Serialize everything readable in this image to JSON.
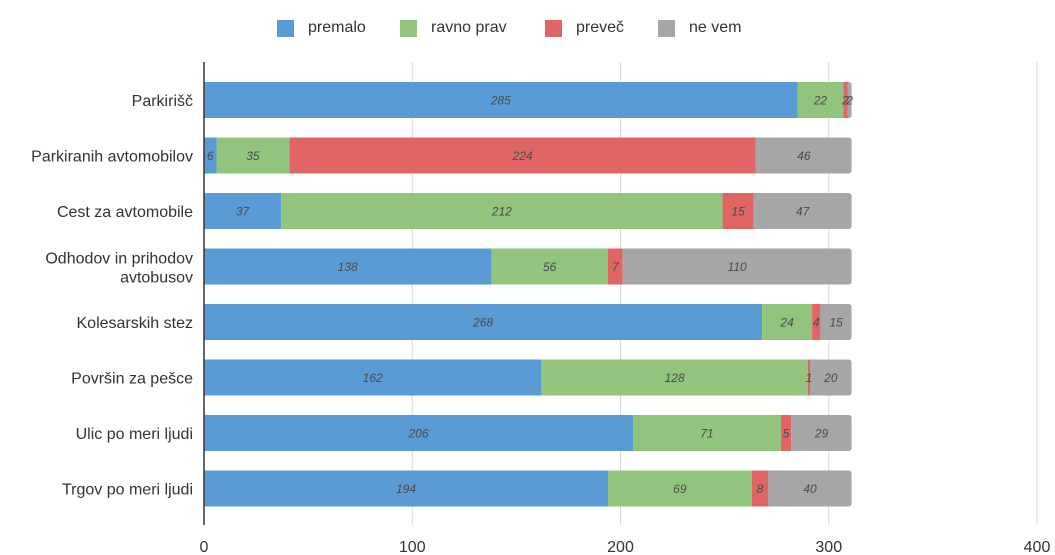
{
  "chart_data": {
    "type": "bar",
    "orientation": "horizontal",
    "stacked": true,
    "categories": [
      "Parkirišč",
      "Parkiranih avtomobilov",
      "Cest za avtomobile",
      "Odhodov in prihodov avtobusov",
      "Kolesarskih stez",
      "Površin za pešce",
      "Ulic po meri ljudi",
      "Trgov po meri ljudi"
    ],
    "series": [
      {
        "name": "premalo",
        "color": "#5b9bd5",
        "values": [
          285,
          6,
          37,
          138,
          268,
          162,
          206,
          194
        ]
      },
      {
        "name": "ravno prav",
        "color": "#93c47d",
        "values": [
          22,
          35,
          212,
          56,
          24,
          128,
          71,
          69
        ]
      },
      {
        "name": "preveč",
        "color": "#e06666",
        "values": [
          2,
          224,
          15,
          7,
          4,
          1,
          5,
          8
        ]
      },
      {
        "name": "ne vem",
        "color": "#a6a6a6",
        "values": [
          2,
          46,
          47,
          110,
          15,
          20,
          29,
          40
        ]
      }
    ],
    "xlim": [
      0,
      400
    ],
    "xticks": [
      0,
      100,
      200,
      300,
      400
    ],
    "grid": true,
    "legend_position": "top"
  }
}
